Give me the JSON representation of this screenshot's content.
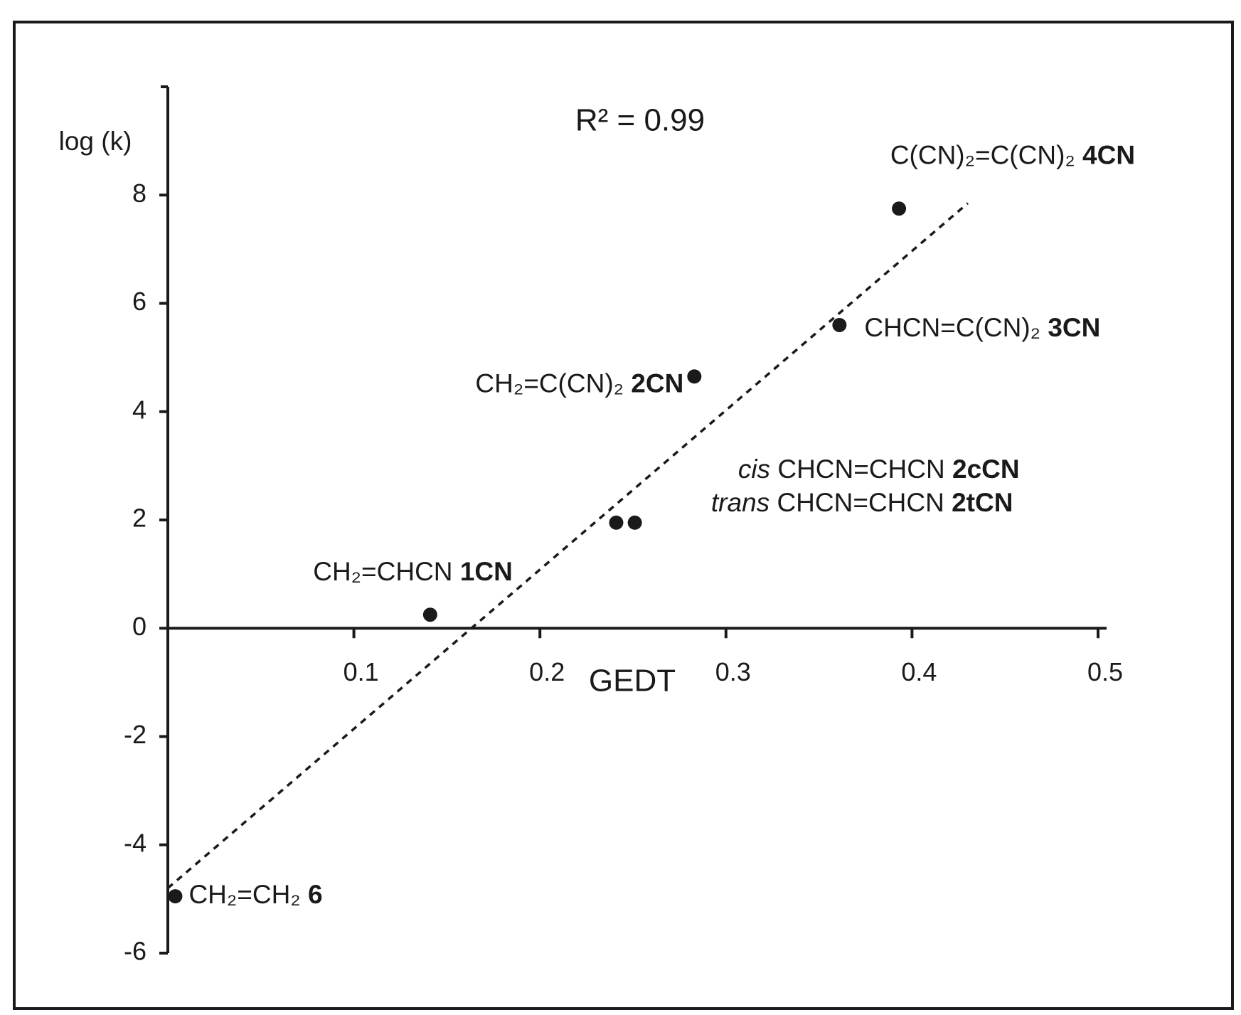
{
  "chart_data": {
    "type": "scatter",
    "x_label": "GEDT",
    "y_label": "log (k)",
    "annotation": "R² = 0.99",
    "xlim": [
      0,
      0.5
    ],
    "xticks": [
      0.1,
      0.2,
      0.3,
      0.4,
      0.5
    ],
    "ylim": [
      -6,
      10
    ],
    "yticks": [
      -6,
      -4,
      -2,
      0,
      2,
      4,
      6,
      8
    ],
    "color": "#1a1a1a",
    "points": [
      {
        "formula": "CH₂=CH₂",
        "id": "6",
        "x": 0.004,
        "y": -4.95
      },
      {
        "formula": "CH₂=CHCN",
        "id": "1CN",
        "x": 0.141,
        "y": 0.25
      },
      {
        "prefix": "trans",
        "formula": "CHCN=CHCN",
        "id": "2tCN",
        "x": 0.241,
        "y": 1.95
      },
      {
        "prefix": "cis",
        "formula": "CHCN=CHCN",
        "id": "2cCN",
        "x": 0.251,
        "y": 1.95
      },
      {
        "formula": "CH₂=C(CN)₂",
        "id": "2CN",
        "x": 0.283,
        "y": 4.65
      },
      {
        "formula": "CHCN=C(CN)₂",
        "id": "3CN",
        "x": 0.361,
        "y": 5.6
      },
      {
        "formula": "C(CN)₂=C(CN)₂",
        "id": "4CN",
        "x": 0.393,
        "y": 7.75
      }
    ],
    "trendline": {
      "x": [
        0,
        0.43
      ],
      "y": [
        -4.8,
        7.85
      ]
    }
  }
}
